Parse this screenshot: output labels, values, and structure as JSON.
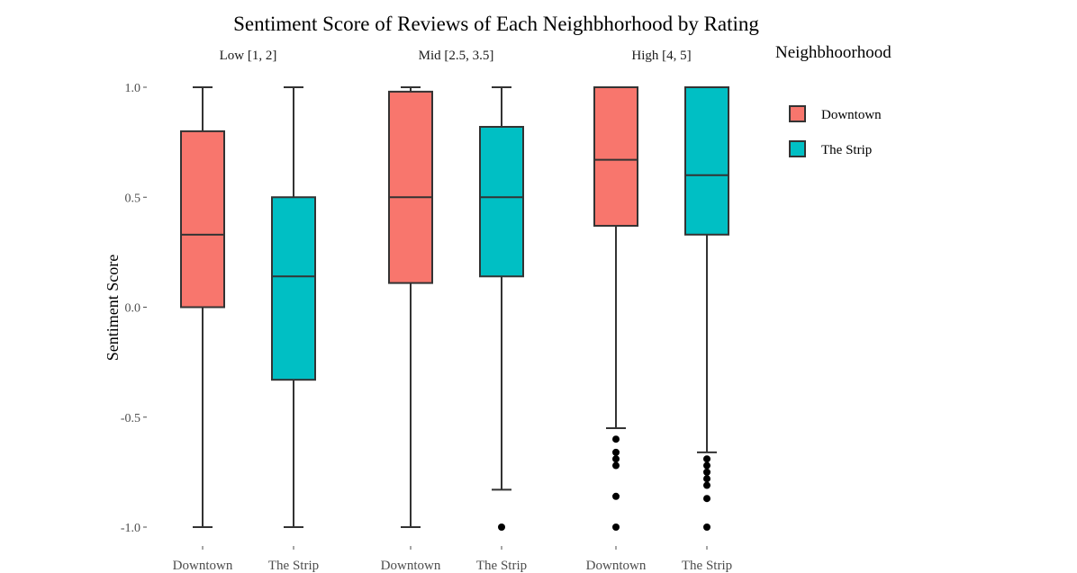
{
  "chart_data": {
    "type": "boxplot",
    "title": "Sentiment Score of Reviews of Each Neighbhorhood by Rating",
    "ylabel": "Sentiment Score",
    "xlabel": "",
    "ylim": [
      -1.0,
      1.0
    ],
    "y_ticks": [
      {
        "value": 1.0,
        "label": "1.0"
      },
      {
        "value": 0.5,
        "label": "0.5"
      },
      {
        "value": 0.0,
        "label": "0.0"
      },
      {
        "value": -0.5,
        "label": "-0.5"
      },
      {
        "value": -1.0,
        "label": "-1.0"
      }
    ],
    "grid": false,
    "legend": {
      "title": "Neighbhoorhood",
      "position": "right",
      "entries": [
        {
          "label": "Downtown",
          "color": "#F8766D"
        },
        {
          "label": "The Strip",
          "color": "#00BFC4"
        }
      ]
    },
    "facets": [
      {
        "label": "Low [1, 2]",
        "boxes": [
          {
            "category": "Downtown",
            "series": "Downtown",
            "whisker_low": -1.0,
            "q1": 0.0,
            "median": 0.33,
            "q3": 0.8,
            "whisker_high": 1.0,
            "outliers": []
          },
          {
            "category": "The Strip",
            "series": "The Strip",
            "whisker_low": -1.0,
            "q1": -0.33,
            "median": 0.14,
            "q3": 0.5,
            "whisker_high": 1.0,
            "outliers": []
          }
        ]
      },
      {
        "label": "Mid [2.5, 3.5]",
        "boxes": [
          {
            "category": "Downtown",
            "series": "Downtown",
            "whisker_low": -1.0,
            "q1": 0.11,
            "median": 0.5,
            "q3": 0.98,
            "whisker_high": 1.0,
            "outliers": []
          },
          {
            "category": "The Strip",
            "series": "The Strip",
            "whisker_low": -0.83,
            "q1": 0.14,
            "median": 0.5,
            "q3": 0.82,
            "whisker_high": 1.0,
            "outliers": [
              -1.0
            ]
          }
        ]
      },
      {
        "label": "High [4, 5]",
        "boxes": [
          {
            "category": "Downtown",
            "series": "Downtown",
            "whisker_low": -0.55,
            "q1": 0.37,
            "median": 0.67,
            "q3": 1.0,
            "whisker_high": 1.0,
            "outliers": [
              -0.6,
              -0.66,
              -0.69,
              -0.72,
              -0.86,
              -1.0
            ]
          },
          {
            "category": "The Strip",
            "series": "The Strip",
            "whisker_low": -0.66,
            "q1": 0.33,
            "median": 0.6,
            "q3": 1.0,
            "whisker_high": 1.0,
            "outliers": [
              -0.69,
              -0.72,
              -0.75,
              -0.78,
              -0.81,
              -0.87,
              -1.0
            ]
          }
        ]
      }
    ],
    "colors": {
      "outline": "#333333",
      "outlier": "#000000"
    }
  }
}
